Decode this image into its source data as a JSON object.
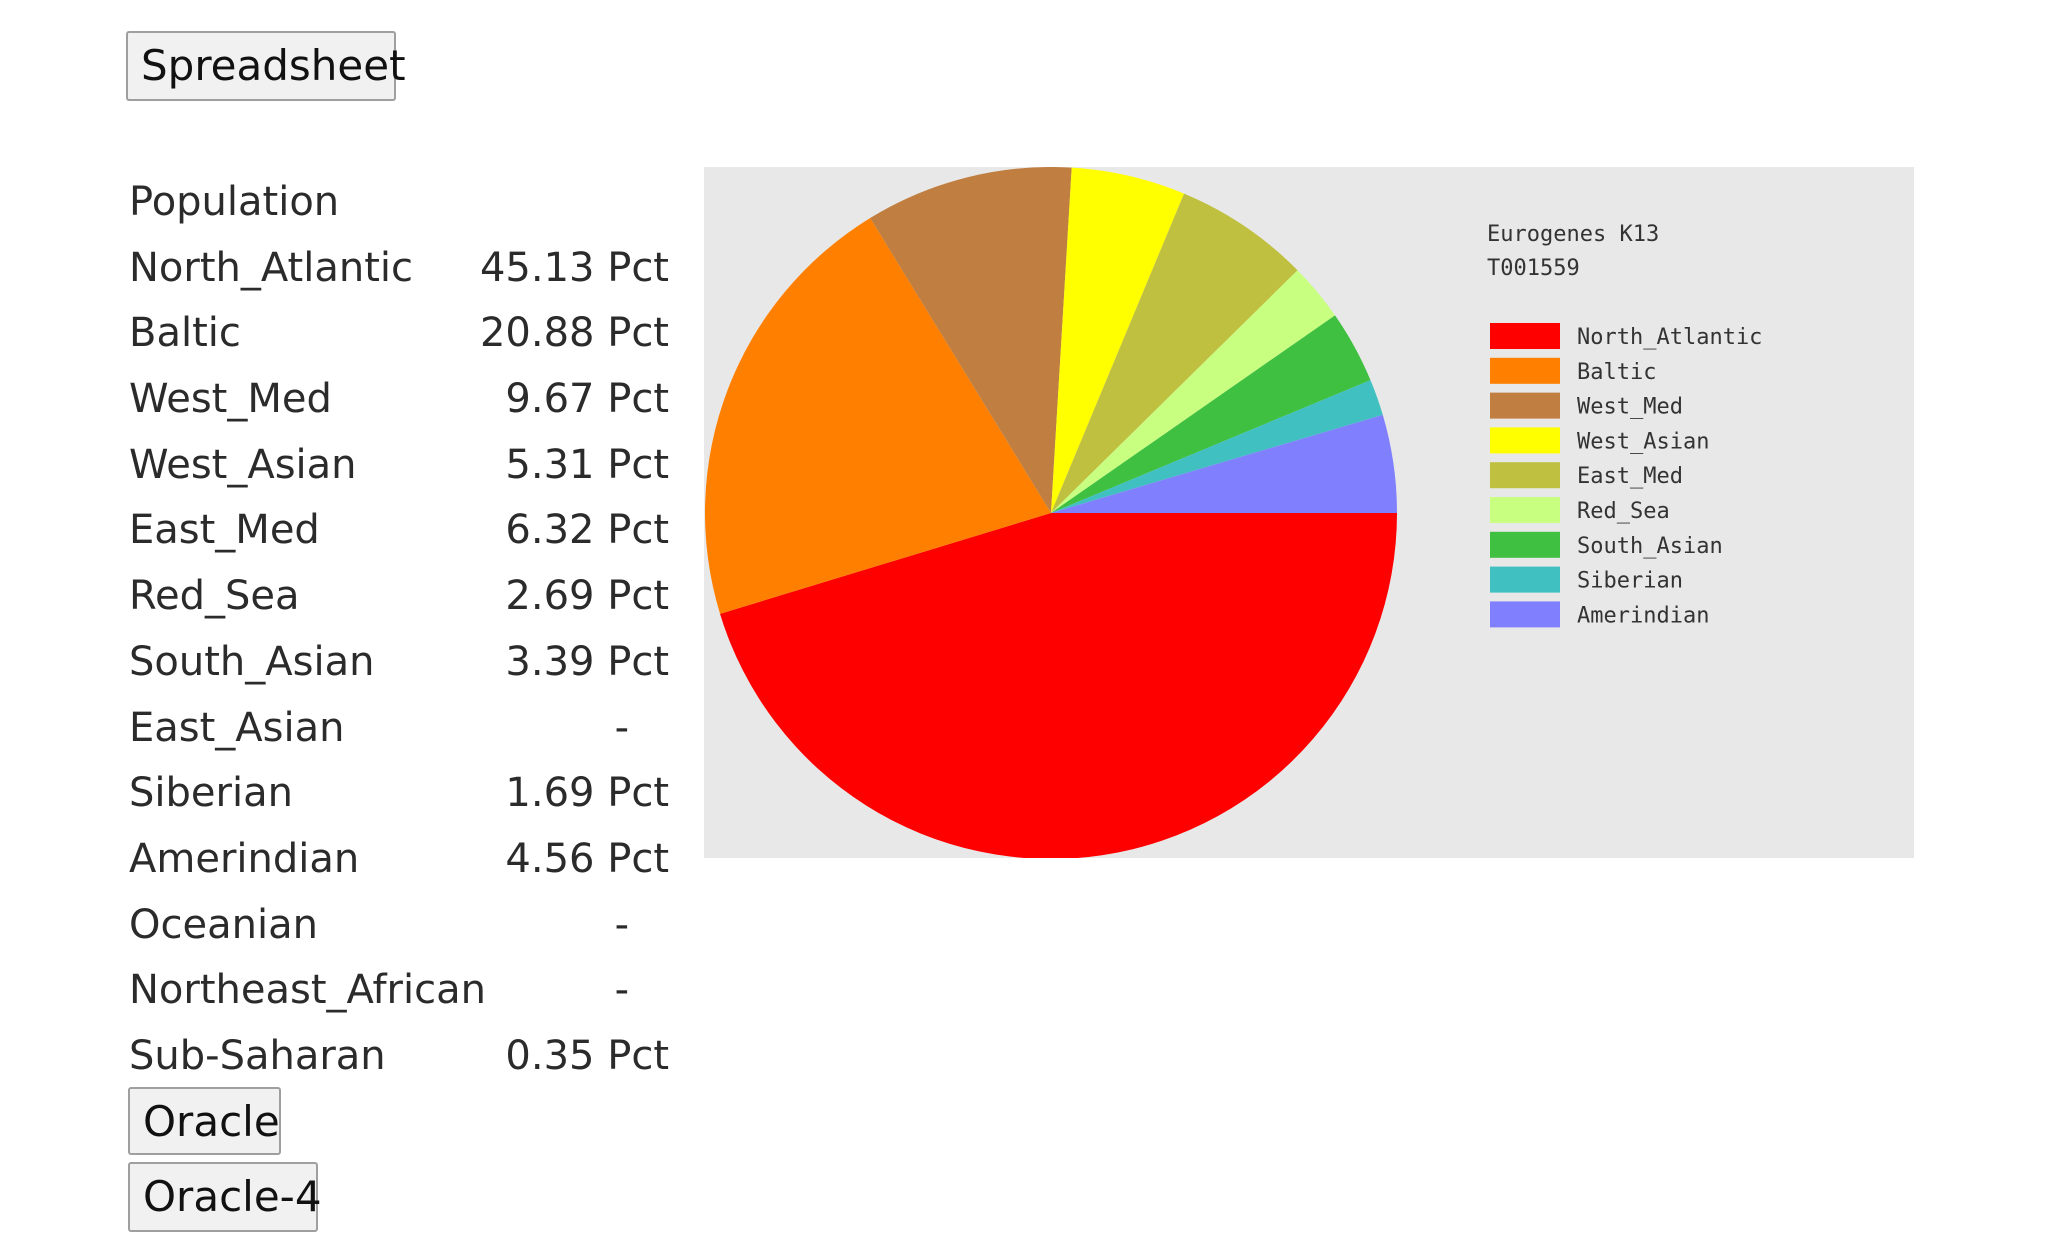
{
  "buttons": {
    "spreadsheet": "Spreadsheet",
    "oracle": "Oracle",
    "oracle4": "Oracle-4"
  },
  "table": {
    "header": "Population",
    "rows": [
      {
        "name": "North_Atlantic",
        "value": "45.13 Pct"
      },
      {
        "name": "Baltic",
        "value": "20.88 Pct"
      },
      {
        "name": "West_Med",
        "value": "9.67 Pct"
      },
      {
        "name": "West_Asian",
        "value": "5.31 Pct"
      },
      {
        "name": "East_Med",
        "value": "6.32 Pct"
      },
      {
        "name": "Red_Sea",
        "value": "2.69 Pct"
      },
      {
        "name": "South_Asian",
        "value": "3.39 Pct"
      },
      {
        "name": "East_Asian",
        "value": "-"
      },
      {
        "name": "Siberian",
        "value": "1.69 Pct"
      },
      {
        "name": "Amerindian",
        "value": "4.56 Pct"
      },
      {
        "name": "Oceanian",
        "value": "-"
      },
      {
        "name": "Northeast_African",
        "value": "-"
      },
      {
        "name": "Sub-Saharan",
        "value": "0.35 Pct"
      }
    ]
  },
  "chart_data": {
    "type": "pie",
    "title": "Eurogenes K13",
    "subtitle": "T001559",
    "legend_position": "right",
    "slices": [
      {
        "label": "North_Atlantic",
        "value": 45.13,
        "color": "#ff0000"
      },
      {
        "label": "Baltic",
        "value": 20.88,
        "color": "#ff8000"
      },
      {
        "label": "West_Med",
        "value": 9.67,
        "color": "#c07f40"
      },
      {
        "label": "West_Asian",
        "value": 5.31,
        "color": "#ffff00"
      },
      {
        "label": "East_Med",
        "value": 6.32,
        "color": "#c0c040"
      },
      {
        "label": "Red_Sea",
        "value": 2.69,
        "color": "#c8ff80"
      },
      {
        "label": "South_Asian",
        "value": 3.39,
        "color": "#40c040"
      },
      {
        "label": "Siberian",
        "value": 1.69,
        "color": "#40c0c0"
      },
      {
        "label": "Amerindian",
        "value": 4.56,
        "color": "#8080ff"
      }
    ]
  }
}
